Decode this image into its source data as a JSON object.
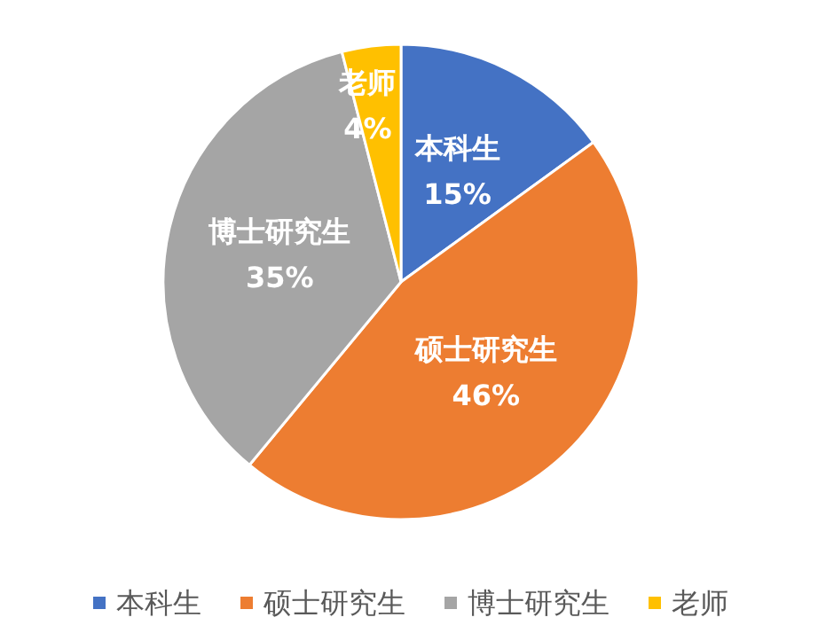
{
  "chart_data": {
    "type": "pie",
    "categories": [
      "本科生",
      "硕士研究生",
      "博士研究生",
      "老师"
    ],
    "values": [
      15,
      46,
      35,
      4
    ],
    "colors": [
      "#4472c4",
      "#ed7d31",
      "#a5a5a5",
      "#ffc000"
    ],
    "value_labels": [
      "15%",
      "46%",
      "35%",
      "4%"
    ],
    "legend": "bottom"
  }
}
